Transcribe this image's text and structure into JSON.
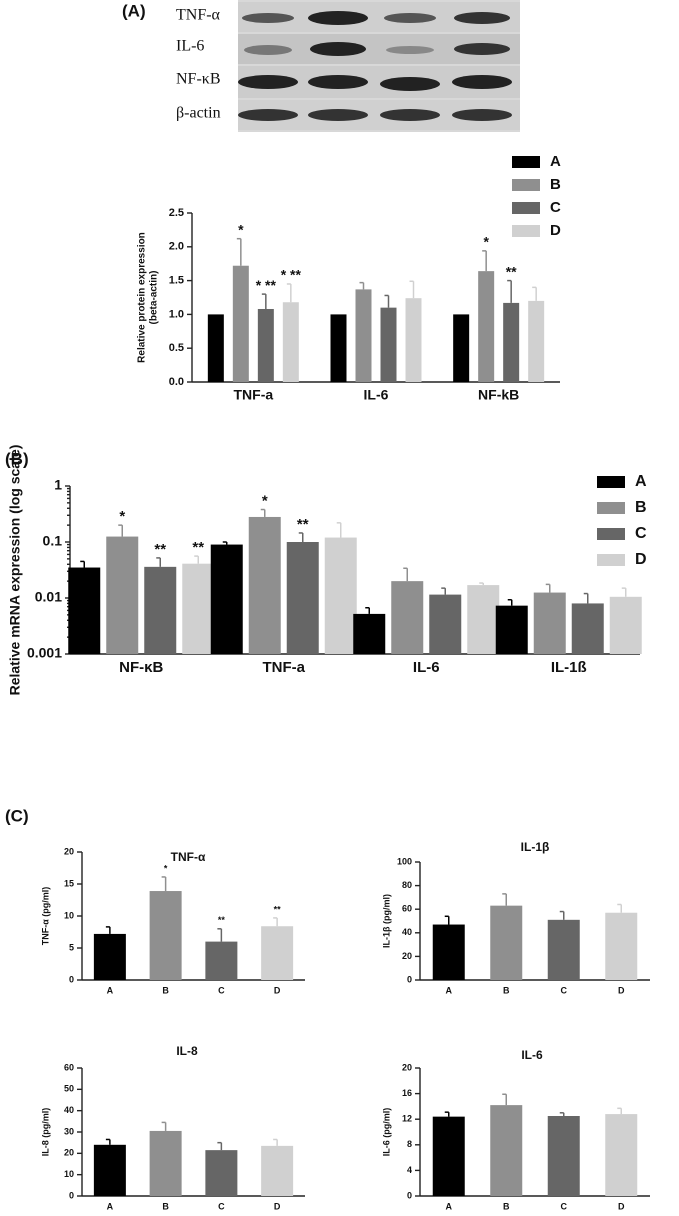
{
  "panel_labels": [
    "(A)",
    "(B)",
    "(C)"
  ],
  "blot": {
    "labels": [
      "TNF-α",
      "IL-6",
      "NF-κB",
      "β-actin"
    ]
  },
  "chart_data": [
    {
      "type": "bar",
      "ylabel": [
        "Relative protein expression",
        "(beta-actin)"
      ],
      "categories": [
        "TNF-a",
        "IL-6",
        "NF-kB"
      ],
      "series": [
        {
          "name": "A",
          "color": "#000000",
          "values": [
            1,
            1,
            1
          ]
        },
        {
          "name": "B",
          "color": "#8f8f8f",
          "values": [
            1.72,
            1.37,
            1.64
          ],
          "errors": [
            0.4,
            0.1,
            0.3
          ],
          "annotations": [
            "*",
            null,
            "*"
          ]
        },
        {
          "name": "C",
          "color": "#666666",
          "values": [
            1.08,
            1.1,
            1.17
          ],
          "errors": [
            0.22,
            0.18,
            0.33
          ],
          "annotations": [
            "* **",
            null,
            "**"
          ]
        },
        {
          "name": "D",
          "color": "#d0d0d0",
          "values": [
            1.18,
            1.24,
            1.2
          ],
          "errors": [
            0.27,
            0.25,
            0.2
          ],
          "annotations": [
            "* **",
            null,
            null
          ]
        }
      ],
      "ylim": [
        0,
        2.5
      ],
      "yticks": [
        {
          "value": 0,
          "label": "0.0"
        },
        {
          "value": 0.5,
          "label": "0.5"
        },
        {
          "value": 1,
          "label": "1.0"
        },
        {
          "value": 1.5,
          "label": "1.5"
        },
        {
          "value": 2,
          "label": "2.0"
        },
        {
          "value": 2.5,
          "label": "2.5"
        }
      ],
      "legend": "right"
    },
    {
      "type": "bar",
      "ylabel": "Relative mRNA expression  (log scale)",
      "log_scale": true,
      "categories": [
        "NF-κB",
        "TNF-a",
        "IL-6",
        "IL-1ß"
      ],
      "series": [
        {
          "name": "A",
          "color": "#000000",
          "values": [
            0.035,
            0.09,
            0.0052,
            0.0073
          ],
          "errors": [
            0.01,
            0.01,
            0.0015,
            0.002
          ]
        },
        {
          "name": "B",
          "color": "#8f8f8f",
          "values": [
            0.125,
            0.28,
            0.02,
            0.0125
          ],
          "errors": [
            0.075,
            0.1,
            0.014,
            0.005
          ],
          "annotations": [
            "*",
            "*",
            null,
            null
          ]
        },
        {
          "name": "C",
          "color": "#666666",
          "values": [
            0.036,
            0.1,
            0.0115,
            0.008
          ],
          "errors": [
            0.016,
            0.045,
            0.0035,
            0.004
          ],
          "annotations": [
            "**",
            "**",
            null,
            null
          ]
        },
        {
          "name": "D",
          "color": "#d0d0d0",
          "values": [
            0.041,
            0.12,
            0.017,
            0.0105
          ],
          "errors": [
            0.015,
            0.1,
            0.0015,
            0.0045
          ],
          "annotations": [
            "**",
            null,
            null,
            null
          ]
        }
      ],
      "ylim": [
        0.001,
        1
      ],
      "yticks": [
        0.001,
        0.01,
        0.1,
        1
      ],
      "legend": "right"
    },
    {
      "type": "bar",
      "title": "TNF-α",
      "ylabel": "TNF-α (pg/ml)",
      "categories": [
        "A",
        "B",
        "C",
        "D"
      ],
      "values": [
        7.2,
        13.9,
        6,
        8.4
      ],
      "errors": [
        1.1,
        2.2,
        2,
        1.3
      ],
      "annotations": [
        null,
        "*",
        "**",
        "**"
      ],
      "colors": [
        "#000000",
        "#8f8f8f",
        "#666666",
        "#d0d0d0"
      ],
      "ylim": [
        0,
        20
      ],
      "yticks": [
        0,
        5,
        10,
        15,
        20
      ]
    },
    {
      "type": "bar",
      "title": "IL-1β",
      "ylabel": "IL-1β (pg/ml)",
      "categories": [
        "A",
        "B",
        "C",
        "D"
      ],
      "values": [
        47,
        63,
        51,
        57
      ],
      "errors": [
        7,
        10,
        7,
        7
      ],
      "colors": [
        "#000000",
        "#8f8f8f",
        "#666666",
        "#d0d0d0"
      ],
      "ylim": [
        0,
        100
      ],
      "yticks": [
        0,
        20,
        40,
        60,
        80,
        100
      ]
    },
    {
      "type": "bar",
      "title": "IL-8",
      "ylabel": "IL-8 (pg/ml)",
      "categories": [
        "A",
        "B",
        "C",
        "D"
      ],
      "values": [
        24,
        30.5,
        21.5,
        23.5
      ],
      "errors": [
        2.5,
        4,
        3.5,
        3
      ],
      "colors": [
        "#000000",
        "#8f8f8f",
        "#666666",
        "#d0d0d0"
      ],
      "ylim": [
        0,
        60
      ],
      "yticks": [
        0,
        10,
        20,
        30,
        40,
        50,
        60
      ]
    },
    {
      "type": "bar",
      "title": "IL-6",
      "ylabel": "IL-6 (pg/ml)",
      "categories": [
        "A",
        "B",
        "C",
        "D"
      ],
      "values": [
        12.4,
        14.2,
        12.5,
        12.8
      ],
      "errors": [
        0.7,
        1.7,
        0.5,
        0.9
      ],
      "colors": [
        "#000000",
        "#8f8f8f",
        "#666666",
        "#d0d0d0"
      ],
      "ylim": [
        0,
        20
      ],
      "yticks": [
        0,
        4,
        8,
        12,
        16,
        20
      ]
    }
  ]
}
